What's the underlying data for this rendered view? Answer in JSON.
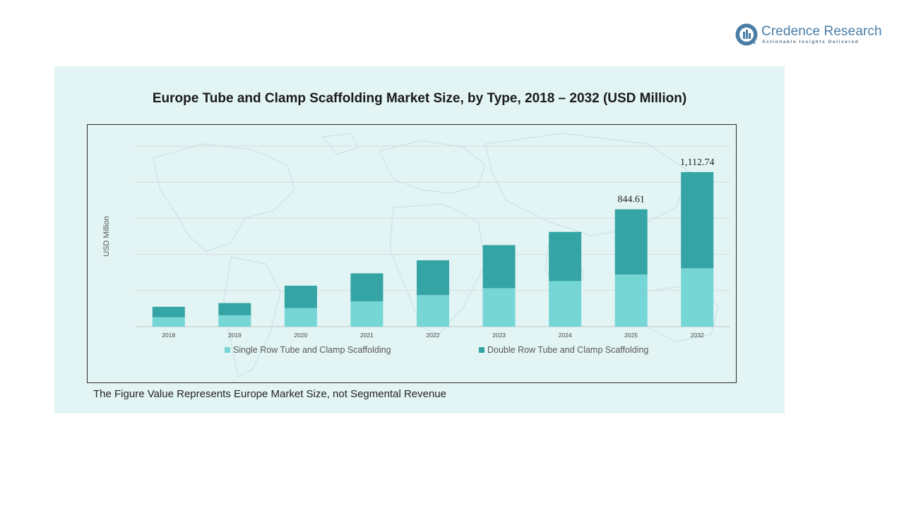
{
  "brand": {
    "name": "Credence Research",
    "tagline": "Actionable Insights Delivered"
  },
  "footnote": "The Figure Value Represents Europe Market Size, not Segmental Revenue",
  "colors": {
    "single_row": "#76d6d6",
    "double_row": "#34a4a4",
    "panel_bg": "#e3f4f4",
    "brand": "#4a7da6"
  },
  "chart_data": {
    "type": "bar",
    "stacked": true,
    "title": "Europe Tube and Clamp Scaffolding Market Size, by Type, 2018 – 2032 (USD Million)",
    "xlabel": "",
    "ylabel": "USD Million",
    "ylim": [
      0,
      1300
    ],
    "grid": true,
    "legend_position": "bottom",
    "categories": [
      "2018",
      "2019",
      "2020",
      "2021",
      "2022",
      "2023",
      "2024",
      "2025",
      "2032"
    ],
    "series": [
      {
        "name": "Single Row Tube and Clamp Scaffolding",
        "color": "#76d6d6",
        "values": [
          68,
          82,
          134,
          182,
          227,
          277,
          328,
          375,
          420
        ]
      },
      {
        "name": "Double Row Tube and Clamp Scaffolding",
        "color": "#34a4a4",
        "values": [
          75,
          88,
          161,
          202,
          251,
          310,
          354,
          469.61,
          692.74
        ]
      }
    ],
    "data_labels": [
      {
        "category": "2025",
        "text": "844.61"
      },
      {
        "category": "2032",
        "text": "1,112.74"
      }
    ]
  }
}
